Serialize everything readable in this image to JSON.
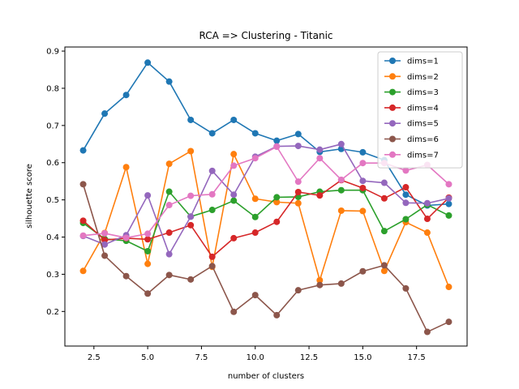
{
  "chart_data": {
    "type": "line",
    "title": "RCA => Clustering - Titanic",
    "xlabel": "number of clusters",
    "ylabel": "silhouette score",
    "xlim": [
      1.15,
      19.85
    ],
    "ylim": [
      0.107,
      0.911
    ],
    "xticks": [
      2.5,
      5.0,
      7.5,
      10.0,
      12.5,
      15.0,
      17.5
    ],
    "xtick_labels": [
      "2.5",
      "5.0",
      "7.5",
      "10.0",
      "12.5",
      "15.0",
      "17.5"
    ],
    "yticks": [
      0.2,
      0.3,
      0.4,
      0.5,
      0.6,
      0.7,
      0.8,
      0.9
    ],
    "ytick_labels": [
      "0.2",
      "0.3",
      "0.4",
      "0.5",
      "0.6",
      "0.7",
      "0.8",
      "0.9"
    ],
    "grid": false,
    "legend_position": "top-right",
    "x": [
      2,
      3,
      4,
      5,
      6,
      7,
      8,
      9,
      10,
      11,
      12,
      13,
      14,
      15,
      16,
      17,
      18,
      19
    ],
    "series": [
      {
        "name": "dims=1",
        "color": "#1f77b4",
        "values": [
          0.633,
          0.732,
          0.782,
          0.869,
          0.818,
          0.715,
          0.679,
          0.715,
          0.679,
          0.659,
          0.677,
          0.629,
          0.637,
          0.628,
          0.607,
          0.514,
          0.485,
          0.489
        ]
      },
      {
        "name": "dims=2",
        "color": "#ff7f0e",
        "values": [
          0.309,
          0.411,
          0.588,
          0.328,
          0.597,
          0.631,
          0.32,
          0.623,
          0.503,
          0.494,
          0.491,
          0.284,
          0.471,
          0.47,
          0.309,
          0.44,
          0.412,
          0.266
        ]
      },
      {
        "name": "dims=3",
        "color": "#2ca02c",
        "values": [
          0.438,
          0.395,
          0.39,
          0.362,
          0.522,
          0.455,
          0.473,
          0.498,
          0.454,
          0.507,
          0.508,
          0.522,
          0.526,
          0.526,
          0.416,
          0.448,
          0.487,
          0.458
        ]
      },
      {
        "name": "dims=4",
        "color": "#d62728",
        "values": [
          0.444,
          0.392,
          0.397,
          0.394,
          0.412,
          0.432,
          0.347,
          0.397,
          0.412,
          0.441,
          0.521,
          0.512,
          0.553,
          0.532,
          0.504,
          0.534,
          0.449,
          0.506
        ]
      },
      {
        "name": "dims=5",
        "color": "#9467bd",
        "values": [
          0.403,
          0.38,
          0.405,
          0.512,
          0.354,
          0.455,
          0.578,
          0.514,
          0.616,
          0.644,
          0.645,
          0.635,
          0.65,
          0.551,
          0.546,
          0.492,
          0.491,
          0.504
        ]
      },
      {
        "name": "dims=6",
        "color": "#8c564b",
        "values": [
          0.542,
          0.35,
          0.295,
          0.248,
          0.298,
          0.286,
          0.322,
          0.199,
          0.244,
          0.19,
          0.257,
          0.271,
          0.275,
          0.308,
          0.324,
          0.262,
          0.145,
          0.172
        ]
      },
      {
        "name": "dims=7",
        "color": "#e377c2",
        "values": [
          0.404,
          0.41,
          0.398,
          0.409,
          0.486,
          0.511,
          0.515,
          0.592,
          0.612,
          0.643,
          0.549,
          0.612,
          0.554,
          0.599,
          0.599,
          0.579,
          0.594,
          0.542
        ]
      }
    ]
  }
}
